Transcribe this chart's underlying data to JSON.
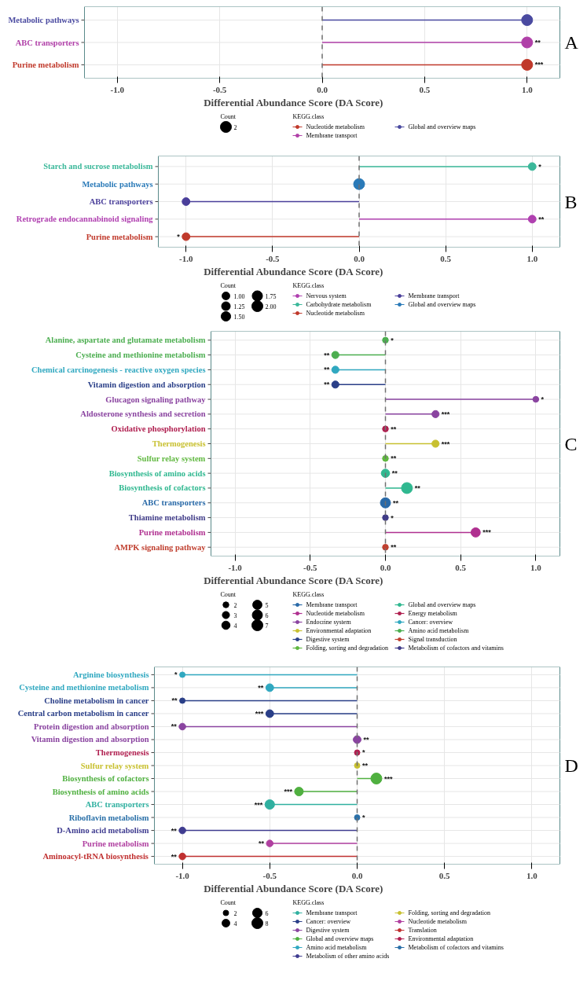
{
  "chart_data": [
    {
      "type": "lollipop",
      "orientation": "horizontal",
      "title": "A",
      "xlabel": "Differential Abundance Score (DA Score)",
      "legend_title": "KEGG.class",
      "legend": "bottom",
      "grid": true,
      "annotations": [
        "Count"
      ],
      "size_legend": [
        2
      ],
      "xlim": [
        -1.16,
        1.16
      ],
      "xticks": [
        {
          "value": -1,
          "label": "-1.0"
        },
        {
          "value": -0.5,
          "label": "-0.5"
        },
        {
          "value": 0,
          "label": "0.0"
        },
        {
          "value": 0.5,
          "label": "0.5"
        },
        {
          "value": 1,
          "label": "1.0"
        }
      ],
      "ref_lines": [
        {
          "axis": "x",
          "value": 0,
          "color": "#707070",
          "line_style": "dashed"
        }
      ],
      "categories": [
        "Metabolic pathways",
        "ABC transporters",
        "Purine metabolism"
      ],
      "series": [
        {
          "name": "Nucleotide metabolism",
          "color": "#c0392b",
          "values": [
            null,
            null,
            1
          ],
          "sizes": [
            null,
            null,
            2
          ],
          "value_labels": [
            null,
            null,
            "***"
          ]
        },
        {
          "name": "Membrane transport",
          "color": "#b040a8",
          "values": [
            null,
            1,
            null
          ],
          "sizes": [
            null,
            2,
            null
          ],
          "value_labels": [
            null,
            "**",
            null
          ]
        },
        {
          "name": "Global and overview maps",
          "color": "#4a4aa0",
          "values": [
            1,
            null,
            null
          ],
          "sizes": [
            2,
            null,
            null
          ],
          "value_labels": [
            null,
            null,
            null
          ]
        }
      ]
    },
    {
      "type": "lollipop",
      "orientation": "horizontal",
      "title": "B",
      "xlabel": "Differential Abundance Score (DA Score)",
      "legend_title": "KEGG.class",
      "legend": "bottom",
      "grid": true,
      "annotations": [
        "Count"
      ],
      "size_legend": [
        {
          "value": 1,
          "label": "1.00"
        },
        {
          "value": 1.25,
          "label": "1.25"
        },
        {
          "value": 1.5,
          "label": "1.50"
        },
        {
          "value": 1.75,
          "label": "1.75"
        },
        {
          "value": 2,
          "label": "2.00"
        }
      ],
      "xlim": [
        -1.16,
        1.16
      ],
      "xticks": [
        {
          "value": -1,
          "label": "-1.0"
        },
        {
          "value": -0.5,
          "label": "-0.5"
        },
        {
          "value": 0,
          "label": "0.0"
        },
        {
          "value": 0.5,
          "label": "0.5"
        },
        {
          "value": 1,
          "label": "1.0"
        }
      ],
      "ref_lines": [
        {
          "axis": "x",
          "value": 0,
          "color": "#707070",
          "line_style": "dashed"
        }
      ],
      "categories": [
        "Starch and sucrose metabolism",
        "Metabolic pathways",
        "ABC transporters",
        "Retrograde endocannabinoid signaling",
        "Purine metabolism"
      ],
      "series": [
        {
          "name": "Nervous system",
          "color": "#b040b0",
          "values": [
            null,
            null,
            null,
            1,
            null
          ],
          "sizes": [
            null,
            null,
            null,
            1,
            null
          ],
          "value_labels": [
            null,
            null,
            null,
            "**",
            null
          ]
        },
        {
          "name": "Carbohydrate metabolism",
          "color": "#3bb89a",
          "values": [
            1,
            null,
            null,
            null,
            null
          ],
          "sizes": [
            1,
            null,
            null,
            null,
            null
          ],
          "value_labels": [
            "*",
            null,
            null,
            null,
            null
          ]
        },
        {
          "name": "Nucleotide metabolism",
          "color": "#c0392b",
          "values": [
            null,
            null,
            null,
            null,
            -1
          ],
          "sizes": [
            null,
            null,
            null,
            null,
            1
          ],
          "value_labels": [
            null,
            null,
            null,
            null,
            "*"
          ]
        },
        {
          "name": "Membrane transport",
          "color": "#4a3f9a",
          "values": [
            null,
            null,
            -1,
            null,
            null
          ],
          "sizes": [
            null,
            null,
            1,
            null,
            null
          ],
          "value_labels": [
            null,
            null,
            null,
            null,
            null
          ]
        },
        {
          "name": "Global and overview maps",
          "color": "#2a7ab8",
          "values": [
            null,
            0,
            null,
            null,
            null
          ],
          "sizes": [
            null,
            2,
            null,
            null,
            null
          ],
          "value_labels": [
            null,
            null,
            null,
            null,
            null
          ]
        }
      ]
    },
    {
      "type": "lollipop",
      "orientation": "horizontal",
      "title": "C",
      "xlabel": "Differential Abundance Score (DA Score)",
      "legend_title": "KEGG.class",
      "legend": "bottom",
      "grid": true,
      "annotations": [
        "Count"
      ],
      "size_legend": [
        2,
        3,
        4,
        5,
        6,
        7
      ],
      "xlim": [
        -1.16,
        1.16
      ],
      "xticks": [
        {
          "value": -1,
          "label": "-1.0"
        },
        {
          "value": -0.5,
          "label": "-0.5"
        },
        {
          "value": 0,
          "label": "0.0"
        },
        {
          "value": 0.5,
          "label": "0.5"
        },
        {
          "value": 1,
          "label": "1.0"
        }
      ],
      "ref_lines": [
        {
          "axis": "x",
          "value": 0,
          "color": "#707070",
          "line_style": "dashed"
        }
      ],
      "categories": [
        "Alanine, aspartate and glutamate metabolism",
        "Cysteine and methionine metabolism",
        "Chemical carcinogenesis - reactive oxygen species",
        "Vitamin digestion and absorption",
        "Glucagon signaling pathway",
        "Aldosterone synthesis and secretion",
        "Oxidative phosphorylation",
        "Thermogenesis",
        "Sulfur relay system",
        "Biosynthesis of amino acids",
        "Biosynthesis of cofactors",
        "ABC transporters",
        "Thiamine metabolism",
        "Purine metabolism",
        "AMPK signaling pathway"
      ],
      "series": [
        {
          "name": "Membrane transport",
          "color": "#2a6aa8",
          "values": [
            null,
            null,
            null,
            null,
            null,
            null,
            null,
            null,
            null,
            null,
            null,
            0,
            null,
            null,
            null
          ],
          "sizes": [
            null,
            null,
            null,
            null,
            null,
            null,
            null,
            null,
            null,
            null,
            null,
            6,
            null,
            null,
            null
          ],
          "value_labels": [
            null,
            null,
            null,
            null,
            null,
            null,
            null,
            null,
            null,
            null,
            null,
            "**",
            null,
            null,
            null
          ]
        },
        {
          "name": "Nucleotide metabolism",
          "color": "#b03090",
          "values": [
            null,
            null,
            null,
            null,
            null,
            null,
            null,
            null,
            null,
            null,
            null,
            null,
            null,
            0.6,
            null
          ],
          "sizes": [
            null,
            null,
            null,
            null,
            null,
            null,
            null,
            null,
            null,
            null,
            null,
            null,
            null,
            5,
            null
          ],
          "value_labels": [
            null,
            null,
            null,
            null,
            null,
            null,
            null,
            null,
            null,
            null,
            null,
            null,
            null,
            "***",
            null
          ]
        },
        {
          "name": "Endocrine system",
          "color": "#8a44a0",
          "values": [
            null,
            null,
            null,
            null,
            1,
            0.333,
            null,
            null,
            null,
            null,
            null,
            null,
            null,
            null,
            null
          ],
          "sizes": [
            null,
            null,
            null,
            null,
            2,
            3,
            null,
            null,
            null,
            null,
            null,
            null,
            null,
            null,
            null
          ],
          "value_labels": [
            null,
            null,
            null,
            null,
            "*",
            "***",
            null,
            null,
            null,
            null,
            null,
            null,
            null,
            null,
            null
          ]
        },
        {
          "name": "Environmental adaptation",
          "color": "#c8c030",
          "values": [
            null,
            null,
            null,
            null,
            null,
            null,
            null,
            0.333,
            null,
            null,
            null,
            null,
            null,
            null,
            null
          ],
          "sizes": [
            null,
            null,
            null,
            null,
            null,
            null,
            null,
            3,
            null,
            null,
            null,
            null,
            null,
            null,
            null
          ],
          "value_labels": [
            null,
            null,
            null,
            null,
            null,
            null,
            null,
            "***",
            null,
            null,
            null,
            null,
            null,
            null,
            null
          ]
        },
        {
          "name": "Digestive system",
          "color": "#2a3f88",
          "values": [
            null,
            null,
            null,
            -0.333,
            null,
            null,
            null,
            null,
            null,
            null,
            null,
            null,
            null,
            null,
            null
          ],
          "sizes": [
            null,
            null,
            null,
            3,
            null,
            null,
            null,
            null,
            null,
            null,
            null,
            null,
            null,
            null,
            null
          ],
          "value_labels": [
            null,
            null,
            null,
            "**",
            null,
            null,
            null,
            null,
            null,
            null,
            null,
            null,
            null,
            null,
            null
          ]
        },
        {
          "name": "Folding, sorting and degradation",
          "color": "#60b840",
          "values": [
            null,
            null,
            null,
            null,
            null,
            null,
            null,
            null,
            0,
            null,
            null,
            null,
            null,
            null,
            null
          ],
          "sizes": [
            null,
            null,
            null,
            null,
            null,
            null,
            null,
            null,
            2,
            null,
            null,
            null,
            null,
            null,
            null
          ],
          "value_labels": [
            null,
            null,
            null,
            null,
            null,
            null,
            null,
            null,
            "**",
            null,
            null,
            null,
            null,
            null,
            null
          ]
        },
        {
          "name": "Global and overview maps",
          "color": "#30b890",
          "values": [
            null,
            null,
            null,
            null,
            null,
            null,
            null,
            null,
            null,
            0,
            0.143,
            null,
            null,
            null,
            null
          ],
          "sizes": [
            null,
            null,
            null,
            null,
            null,
            null,
            null,
            null,
            null,
            4,
            7,
            null,
            null,
            null,
            null
          ],
          "value_labels": [
            null,
            null,
            null,
            null,
            null,
            null,
            null,
            null,
            null,
            "**",
            "**",
            null,
            null,
            null,
            null
          ]
        },
        {
          "name": "Energy metabolism",
          "color": "#b02050",
          "values": [
            null,
            null,
            null,
            null,
            null,
            null,
            0,
            null,
            null,
            null,
            null,
            null,
            null,
            null,
            null
          ],
          "sizes": [
            null,
            null,
            null,
            null,
            null,
            null,
            2,
            null,
            null,
            null,
            null,
            null,
            null,
            null,
            null
          ],
          "value_labels": [
            null,
            null,
            null,
            null,
            null,
            null,
            "**",
            null,
            null,
            null,
            null,
            null,
            null,
            null,
            null
          ]
        },
        {
          "name": "Cancer: overview",
          "color": "#30a8c0",
          "values": [
            null,
            null,
            -0.333,
            null,
            null,
            null,
            null,
            null,
            null,
            null,
            null,
            null,
            null,
            null,
            null
          ],
          "sizes": [
            null,
            null,
            3,
            null,
            null,
            null,
            null,
            null,
            null,
            null,
            null,
            null,
            null,
            null,
            null
          ],
          "value_labels": [
            null,
            null,
            "**",
            null,
            null,
            null,
            null,
            null,
            null,
            null,
            null,
            null,
            null,
            null,
            null
          ]
        },
        {
          "name": "Amino acid metabolism",
          "color": "#4cae50",
          "values": [
            0,
            -0.333,
            null,
            null,
            null,
            null,
            null,
            null,
            null,
            null,
            null,
            null,
            null,
            null,
            null
          ],
          "sizes": [
            2,
            3,
            null,
            null,
            null,
            null,
            null,
            null,
            null,
            null,
            null,
            null,
            null,
            null,
            null
          ],
          "value_labels": [
            "*",
            "**",
            null,
            null,
            null,
            null,
            null,
            null,
            null,
            null,
            null,
            null,
            null,
            null,
            null
          ]
        },
        {
          "name": "Signal transduction",
          "color": "#c04030",
          "values": [
            null,
            null,
            null,
            null,
            null,
            null,
            null,
            null,
            null,
            null,
            null,
            null,
            null,
            null,
            0
          ],
          "sizes": [
            null,
            null,
            null,
            null,
            null,
            null,
            null,
            null,
            null,
            null,
            null,
            null,
            null,
            null,
            2
          ],
          "value_labels": [
            null,
            null,
            null,
            null,
            null,
            null,
            null,
            null,
            null,
            null,
            null,
            null,
            null,
            null,
            "**"
          ]
        },
        {
          "name": "Metabolism of cofactors and vitamins",
          "color": "#403c88",
          "values": [
            null,
            null,
            null,
            null,
            null,
            null,
            null,
            null,
            null,
            null,
            null,
            null,
            0,
            null,
            null
          ],
          "sizes": [
            null,
            null,
            null,
            null,
            null,
            null,
            null,
            null,
            null,
            null,
            null,
            null,
            2,
            null,
            null
          ],
          "value_labels": [
            null,
            null,
            null,
            null,
            null,
            null,
            null,
            null,
            null,
            null,
            null,
            null,
            "*",
            null,
            null
          ]
        }
      ]
    },
    {
      "type": "lollipop",
      "orientation": "horizontal",
      "title": "D",
      "xlabel": "Differential Abundance Score (DA Score)",
      "legend_title": "KEGG.class",
      "legend": "bottom",
      "grid": true,
      "annotations": [
        "Count"
      ],
      "size_legend": [
        2,
        4,
        6,
        8
      ],
      "xlim": [
        -1.16,
        1.16
      ],
      "xticks": [
        {
          "value": -1,
          "label": "-1.0"
        },
        {
          "value": -0.5,
          "label": "-0.5"
        },
        {
          "value": 0,
          "label": "0.0"
        },
        {
          "value": 0.5,
          "label": "0.5"
        },
        {
          "value": 1,
          "label": "1.0"
        }
      ],
      "ref_lines": [
        {
          "axis": "x",
          "value": 0,
          "color": "#707070",
          "line_style": "dashed"
        }
      ],
      "categories": [
        "Arginine biosynthesis",
        "Cysteine and methionine metabolism",
        "Choline metabolism in cancer",
        "Central carbon metabolism in cancer",
        "Protein digestion and absorption",
        "Vitamin digestion and absorption",
        "Thermogenesis",
        "Sulfur relay system",
        "Biosynthesis of cofactors",
        "Biosynthesis of amino acids",
        "ABC transporters",
        "Riboflavin metabolism",
        "D-Amino acid metabolism",
        "Purine metabolism",
        "Aminoacyl-tRNA biosynthesis"
      ],
      "series": [
        {
          "name": "Membrane transport",
          "color": "#30b0a0",
          "values": [
            null,
            null,
            null,
            null,
            null,
            null,
            null,
            null,
            null,
            null,
            -0.5,
            null,
            null,
            null,
            null
          ],
          "sizes": [
            null,
            null,
            null,
            null,
            null,
            null,
            null,
            null,
            null,
            null,
            6,
            null,
            null,
            null,
            null
          ],
          "value_labels": [
            null,
            null,
            null,
            null,
            null,
            null,
            null,
            null,
            null,
            null,
            "***",
            null,
            null,
            null,
            null
          ]
        },
        {
          "name": "Cancer: overview",
          "color": "#2a3f88",
          "values": [
            null,
            null,
            -1,
            -0.5,
            null,
            null,
            null,
            null,
            null,
            null,
            null,
            null,
            null,
            null,
            null
          ],
          "sizes": [
            null,
            null,
            2,
            4,
            null,
            null,
            null,
            null,
            null,
            null,
            null,
            null,
            null,
            null,
            null
          ],
          "value_labels": [
            null,
            null,
            "**",
            "***",
            null,
            null,
            null,
            null,
            null,
            null,
            null,
            null,
            null,
            null,
            null
          ]
        },
        {
          "name": "Digestive system",
          "color": "#8a44a0",
          "values": [
            null,
            null,
            null,
            null,
            -1,
            0,
            null,
            null,
            null,
            null,
            null,
            null,
            null,
            null,
            null
          ],
          "sizes": [
            null,
            null,
            null,
            null,
            3,
            4,
            null,
            null,
            null,
            null,
            null,
            null,
            null,
            null,
            null
          ],
          "value_labels": [
            null,
            null,
            null,
            null,
            "**",
            "**",
            null,
            null,
            null,
            null,
            null,
            null,
            null,
            null,
            null
          ]
        },
        {
          "name": "Global and overview maps",
          "color": "#50b040",
          "values": [
            null,
            null,
            null,
            null,
            null,
            null,
            null,
            null,
            0.11,
            -0.333,
            null,
            null,
            null,
            null,
            null
          ],
          "sizes": [
            null,
            null,
            null,
            null,
            null,
            null,
            null,
            null,
            8,
            5,
            null,
            null,
            null,
            null,
            null
          ],
          "value_labels": [
            null,
            null,
            null,
            null,
            null,
            null,
            null,
            null,
            "***",
            "***",
            null,
            null,
            null,
            null,
            null
          ]
        },
        {
          "name": "Amino acid metabolism",
          "color": "#30a8c0",
          "values": [
            -1,
            -0.5,
            null,
            null,
            null,
            null,
            null,
            null,
            null,
            null,
            null,
            null,
            null,
            null,
            null
          ],
          "sizes": [
            2,
            4,
            null,
            null,
            null,
            null,
            null,
            null,
            null,
            null,
            null,
            null,
            null,
            null,
            null
          ],
          "value_labels": [
            "*",
            "**",
            null,
            null,
            null,
            null,
            null,
            null,
            null,
            null,
            null,
            null,
            null,
            null,
            null
          ]
        },
        {
          "name": "Metabolism of other amino acids",
          "color": "#3f3c90",
          "values": [
            null,
            null,
            null,
            null,
            null,
            null,
            null,
            null,
            null,
            null,
            null,
            null,
            -1,
            null,
            null
          ],
          "sizes": [
            null,
            null,
            null,
            null,
            null,
            null,
            null,
            null,
            null,
            null,
            null,
            null,
            3,
            null,
            null
          ],
          "value_labels": [
            null,
            null,
            null,
            null,
            null,
            null,
            null,
            null,
            null,
            null,
            null,
            null,
            "**",
            null,
            null
          ]
        },
        {
          "name": "Folding, sorting and degradation",
          "color": "#c8c030",
          "values": [
            null,
            null,
            null,
            null,
            null,
            null,
            null,
            0,
            null,
            null,
            null,
            null,
            null,
            null,
            null
          ],
          "sizes": [
            null,
            null,
            null,
            null,
            null,
            null,
            null,
            2,
            null,
            null,
            null,
            null,
            null,
            null,
            null
          ],
          "value_labels": [
            null,
            null,
            null,
            null,
            null,
            null,
            null,
            "**",
            null,
            null,
            null,
            null,
            null,
            null,
            null
          ]
        },
        {
          "name": "Nucleotide metabolism",
          "color": "#b040a0",
          "values": [
            null,
            null,
            null,
            null,
            null,
            null,
            null,
            null,
            null,
            null,
            null,
            null,
            null,
            -0.5,
            null
          ],
          "sizes": [
            null,
            null,
            null,
            null,
            null,
            null,
            null,
            null,
            null,
            null,
            null,
            null,
            null,
            3,
            null
          ],
          "value_labels": [
            null,
            null,
            null,
            null,
            null,
            null,
            null,
            null,
            null,
            null,
            null,
            null,
            null,
            "**",
            null
          ]
        },
        {
          "name": "Translation",
          "color": "#c03030",
          "values": [
            null,
            null,
            null,
            null,
            null,
            null,
            null,
            null,
            null,
            null,
            null,
            null,
            null,
            null,
            -1
          ],
          "sizes": [
            null,
            null,
            null,
            null,
            null,
            null,
            null,
            null,
            null,
            null,
            null,
            null,
            null,
            null,
            3
          ],
          "value_labels": [
            null,
            null,
            null,
            null,
            null,
            null,
            null,
            null,
            null,
            null,
            null,
            null,
            null,
            null,
            "**"
          ]
        },
        {
          "name": "Environmental adaptation",
          "color": "#b02050",
          "values": [
            null,
            null,
            null,
            null,
            null,
            null,
            0,
            null,
            null,
            null,
            null,
            null,
            null,
            null,
            null
          ],
          "sizes": [
            null,
            null,
            null,
            null,
            null,
            null,
            2,
            null,
            null,
            null,
            null,
            null,
            null,
            null,
            null
          ],
          "value_labels": [
            null,
            null,
            null,
            null,
            null,
            null,
            "*",
            null,
            null,
            null,
            null,
            null,
            null,
            null,
            null
          ]
        },
        {
          "name": "Metabolism of cofactors and vitamins",
          "color": "#2a70a8",
          "values": [
            null,
            null,
            null,
            null,
            null,
            null,
            null,
            null,
            null,
            null,
            null,
            0,
            null,
            null,
            null
          ],
          "sizes": [
            null,
            null,
            null,
            null,
            null,
            null,
            null,
            null,
            null,
            null,
            null,
            2,
            null,
            null,
            null
          ],
          "value_labels": [
            null,
            null,
            null,
            null,
            null,
            null,
            null,
            null,
            null,
            null,
            null,
            "*",
            null,
            null,
            null
          ]
        }
      ]
    }
  ]
}
